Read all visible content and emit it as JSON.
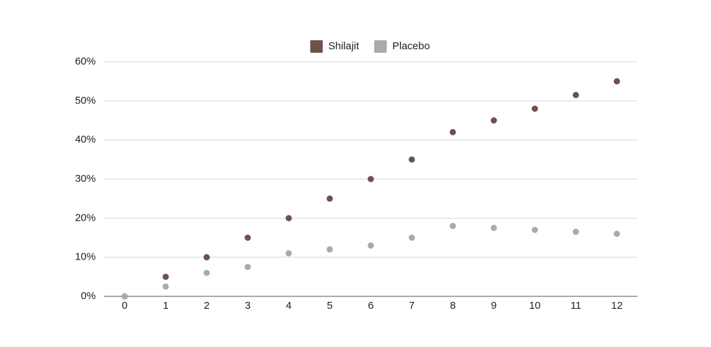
{
  "chart_data": {
    "type": "scatter",
    "x": [
      0,
      1,
      2,
      3,
      4,
      5,
      6,
      7,
      8,
      9,
      10,
      11,
      12
    ],
    "series": [
      {
        "name": "Shilajit",
        "color": "#6d5249",
        "values": [
          0,
          5,
          10,
          15,
          20,
          25,
          30,
          35,
          42,
          45,
          48,
          51.5,
          55
        ]
      },
      {
        "name": "Placebo",
        "color": "#aaaaaa",
        "values": [
          0,
          2.5,
          6,
          7.5,
          11,
          12,
          13,
          15,
          18,
          17.5,
          17,
          16.5,
          16
        ]
      }
    ],
    "xlim": [
      -0.5,
      12.5
    ],
    "xticks": [
      0,
      1,
      2,
      3,
      4,
      5,
      6,
      7,
      8,
      9,
      10,
      11,
      12
    ],
    "ylim": [
      0,
      60
    ],
    "yticks": [
      {
        "value": 0,
        "label": "0%"
      },
      {
        "value": 10,
        "label": "10%"
      },
      {
        "value": 20,
        "label": "20%"
      },
      {
        "value": 30,
        "label": "30%"
      },
      {
        "value": 40,
        "label": "40%"
      },
      {
        "value": 50,
        "label": "50%"
      },
      {
        "value": 60,
        "label": "60%"
      }
    ],
    "grid": true,
    "legend": "top"
  }
}
